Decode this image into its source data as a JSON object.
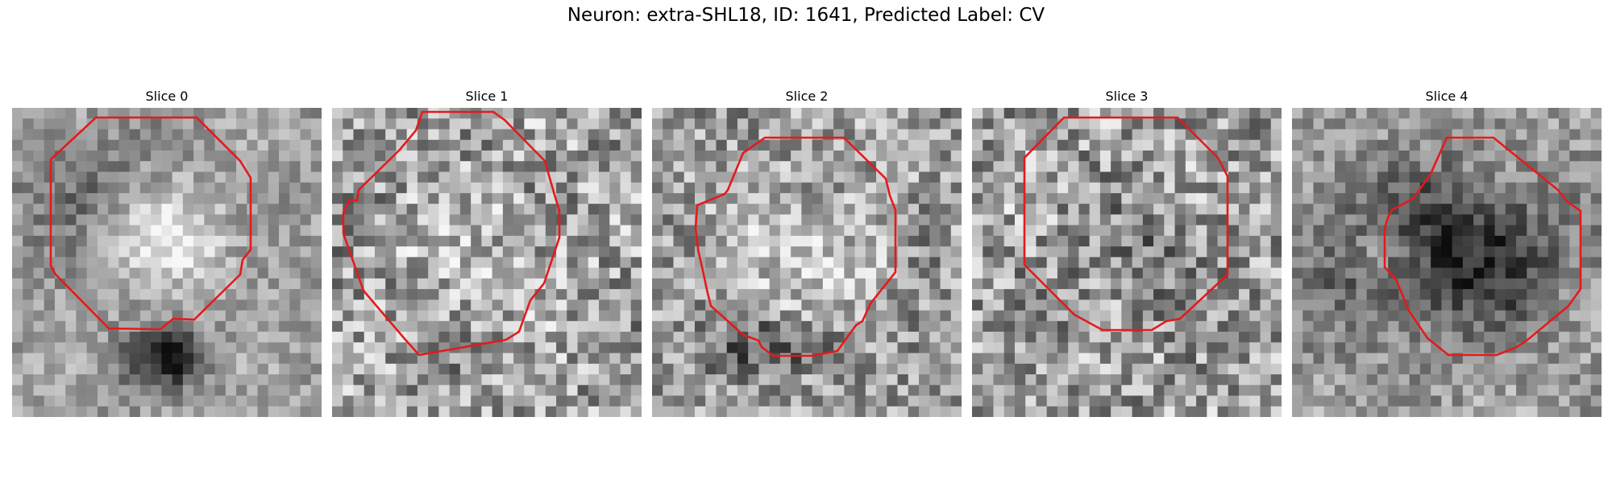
{
  "figure": {
    "title": "Neuron: extra-SHL18, ID: 1641, Predicted Label: CV"
  },
  "colors": {
    "contour": "#e41a1c",
    "background": "#ffffff"
  },
  "panels": [
    {
      "title": "Slice 0"
    },
    {
      "title": "Slice 1"
    },
    {
      "title": "Slice 2"
    },
    {
      "title": "Slice 3"
    },
    {
      "title": "Slice 4"
    }
  ]
}
